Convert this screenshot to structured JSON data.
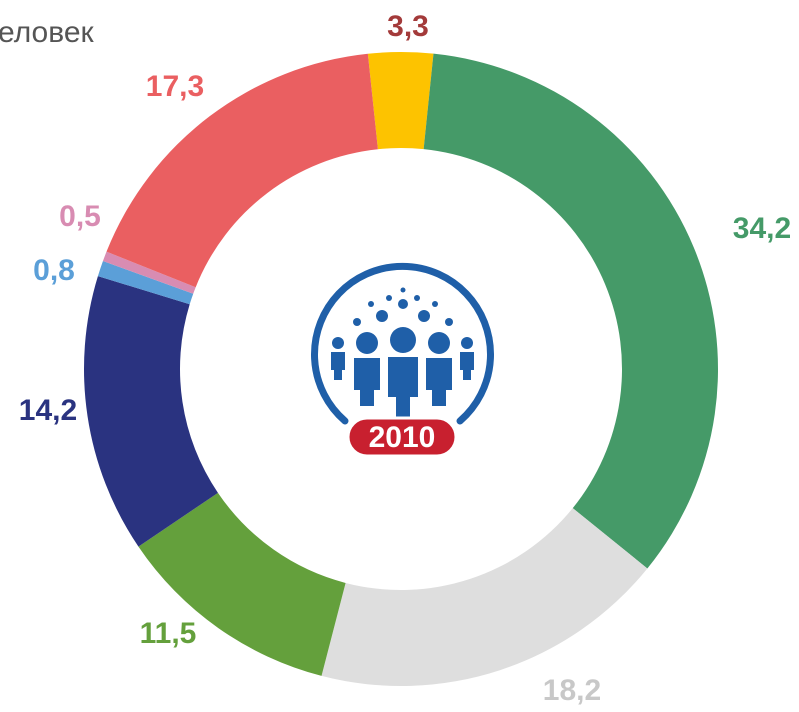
{
  "chart_data": {
    "type": "donut",
    "title": "еловек",
    "categories": [
      null,
      null,
      null,
      null,
      null,
      null,
      null,
      null
    ],
    "values": [
      3.3,
      34.2,
      18.2,
      11.5,
      14.2,
      0.8,
      0.5,
      17.3
    ],
    "value_labels": [
      "3,3",
      "34,2",
      "18,2",
      "11,5",
      "14,2",
      "0,8",
      "0,5",
      "17,3"
    ],
    "colors": [
      "#fdc300",
      "#459a68",
      "#dedede",
      "#64a03c",
      "#2a3380",
      "#5b9fd8",
      "#d88cb2",
      "#ea5f61"
    ],
    "label_colors": [
      "#a33a3a",
      "#459a68",
      "#c8c8c8",
      "#64a03c",
      "#2a3380",
      "#5b9fd8",
      "#d88cb2",
      "#ea5f61"
    ],
    "logo_text": "2010"
  }
}
